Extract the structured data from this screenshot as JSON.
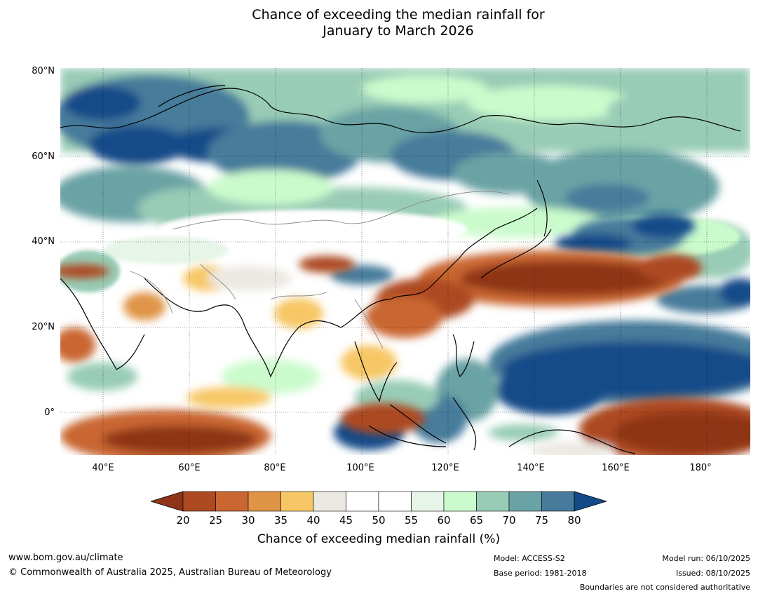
{
  "title": {
    "line1": "Chance of exceeding the median rainfall for",
    "line2": "January to March 2026"
  },
  "map": {
    "lat_labels": [
      "80°N",
      "60°N",
      "40°N",
      "20°N",
      "0°"
    ],
    "lon_labels": [
      "40°E",
      "60°E",
      "80°E",
      "100°E",
      "120°E",
      "140°E",
      "160°E",
      "180°"
    ],
    "lon_range": [
      30,
      190
    ],
    "lat_range": [
      -10,
      80
    ]
  },
  "legend": {
    "ticks": [
      "20",
      "25",
      "30",
      "35",
      "40",
      "45",
      "50",
      "55",
      "60",
      "65",
      "70",
      "75",
      "80"
    ],
    "colors": [
      "#8e3418",
      "#ad4a22",
      "#c96632",
      "#df9446",
      "#f7c766",
      "#ece9e3",
      "#ffffff",
      "#ffffff",
      "#e7f5e8",
      "#cbfbcc",
      "#98ccb6",
      "#6aa3a5",
      "#467b9b",
      "#134b89"
    ],
    "label": "Chance of exceeding median rainfall (%)"
  },
  "footer": {
    "url": "www.bom.gov.au/climate",
    "copyright": "© Commonwealth of Australia 2025, Australian Bureau of Meteorology",
    "model": "Model: ACCESS-S2",
    "base_period": "Base period: 1981-2018",
    "model_run": "Model run: 06/10/2025",
    "issued": "Issued: 08/10/2025",
    "disclaimer": "Boundaries are not considered authoritative"
  }
}
